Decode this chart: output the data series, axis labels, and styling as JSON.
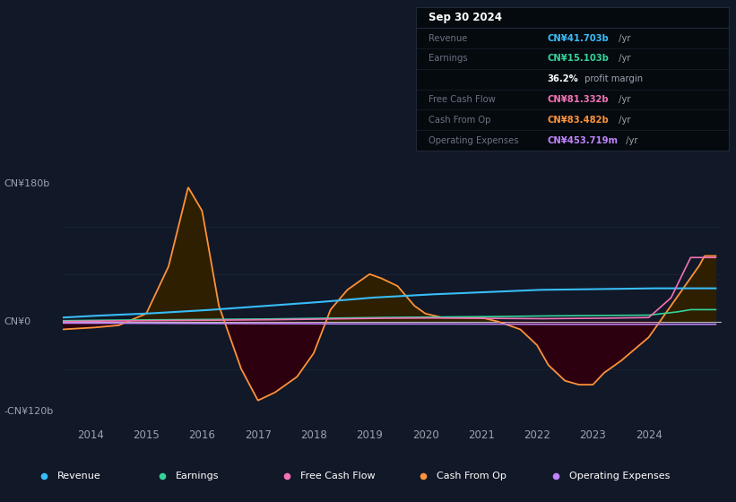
{
  "bg_color": "#111827",
  "plot_bg_color": "#111827",
  "info_box": {
    "date": "Sep 30 2024",
    "rows": [
      {
        "label": "Revenue",
        "value": "CN¥41.703b",
        "suffix": " /yr",
        "color": "#38bdf8"
      },
      {
        "label": "Earnings",
        "value": "CN¥15.103b",
        "suffix": " /yr",
        "color": "#34d399"
      },
      {
        "label": "",
        "value": "36.2%",
        "suffix": " profit margin",
        "color": "#ffffff"
      },
      {
        "label": "Free Cash Flow",
        "value": "CN¥81.332b",
        "suffix": " /yr",
        "color": "#f472b6"
      },
      {
        "label": "Cash From Op",
        "value": "CN¥83.482b",
        "suffix": " /yr",
        "color": "#fb923c"
      },
      {
        "label": "Operating Expenses",
        "value": "CN¥453.719m",
        "suffix": " /yr",
        "color": "#c084fc"
      }
    ]
  },
  "y_label_top": "CN¥180b",
  "y_label_zero": "CN¥0",
  "y_label_bottom": "-CN¥120b",
  "ylim": [
    -130,
    210
  ],
  "xlim_start": 2013.5,
  "xlim_end": 2025.3,
  "x_ticks": [
    2014,
    2015,
    2016,
    2017,
    2018,
    2019,
    2020,
    2021,
    2022,
    2023,
    2024
  ],
  "colors": {
    "revenue": "#38bdf8",
    "earnings": "#34d399",
    "free_cash_flow": "#f472b6",
    "cash_from_op": "#fb923c",
    "operating_expenses": "#c084fc",
    "fill_positive": "#2d1f00",
    "fill_negative": "#2d000f",
    "zero_line": "#ffffff",
    "grid": "#1f2937"
  },
  "legend": [
    {
      "label": "Revenue",
      "color": "#38bdf8"
    },
    {
      "label": "Earnings",
      "color": "#34d399"
    },
    {
      "label": "Free Cash Flow",
      "color": "#f472b6"
    },
    {
      "label": "Cash From Op",
      "color": "#fb923c"
    },
    {
      "label": "Operating Expenses",
      "color": "#c084fc"
    }
  ]
}
